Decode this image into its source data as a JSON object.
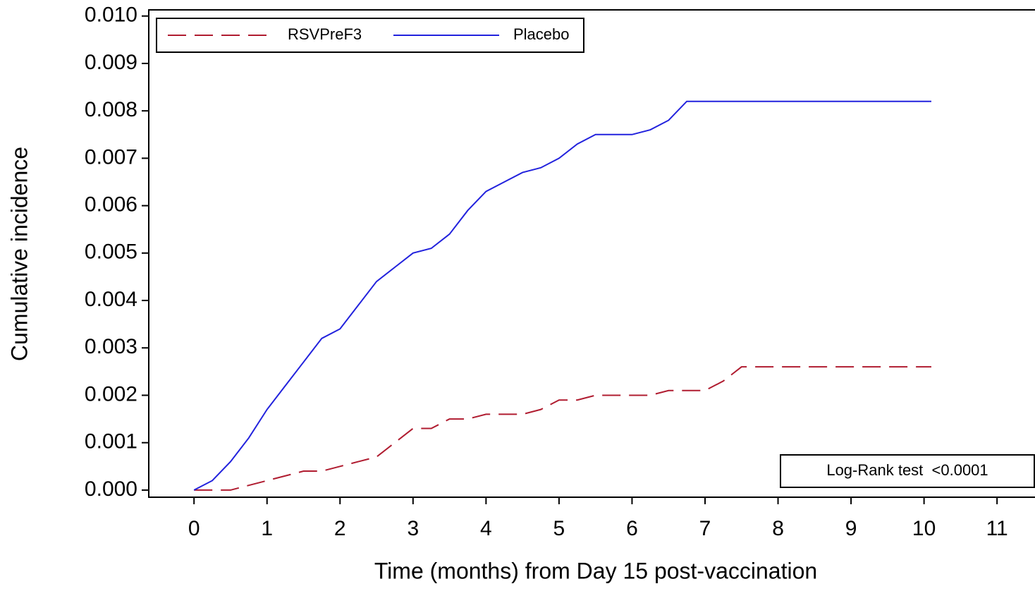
{
  "chart_data": {
    "type": "line",
    "x_label": "Time (months) from Day 15 post-vaccination",
    "y_label": "Cumulative incidence",
    "annotation": "Log-Rank test  <0.0001",
    "x": [
      0,
      0.25,
      0.5,
      0.75,
      1,
      1.25,
      1.5,
      1.75,
      2,
      2.25,
      2.5,
      2.75,
      3,
      3.25,
      3.5,
      3.75,
      4,
      4.25,
      4.5,
      4.75,
      5,
      5.25,
      5.5,
      5.75,
      6,
      6.25,
      6.5,
      6.75,
      7,
      7.25,
      7.5,
      7.75,
      8,
      8.25,
      8.5,
      8.75,
      9,
      9.25,
      9.5,
      9.75,
      10,
      10.1
    ],
    "series": [
      {
        "name": "RSVPreF3",
        "color": "#b01c30",
        "dashed": true,
        "values": [
          0,
          0,
          0,
          0.0001,
          0.0002,
          0.0003,
          0.0004,
          0.0004,
          0.0005,
          0.0006,
          0.0007,
          0.001,
          0.0013,
          0.0013,
          0.0015,
          0.0015,
          0.0016,
          0.0016,
          0.0016,
          0.0017,
          0.0019,
          0.0019,
          0.002,
          0.002,
          0.002,
          0.002,
          0.0021,
          0.0021,
          0.0021,
          0.0023,
          0.0026,
          0.0026,
          0.0026,
          0.0026,
          0.0026,
          0.0026,
          0.0026,
          0.0026,
          0.0026,
          0.0026,
          0.0026,
          0.0026
        ]
      },
      {
        "name": "Placebo",
        "color": "#2222dd",
        "dashed": false,
        "values": [
          0,
          0.0002,
          0.0006,
          0.0011,
          0.0017,
          0.0022,
          0.0027,
          0.0032,
          0.0034,
          0.0039,
          0.0044,
          0.0047,
          0.005,
          0.0051,
          0.0054,
          0.0059,
          0.0063,
          0.0065,
          0.0067,
          0.0068,
          0.007,
          0.0073,
          0.0075,
          0.0075,
          0.0075,
          0.0076,
          0.0078,
          0.0082,
          0.0082,
          0.0082,
          0.0082,
          0.0082,
          0.0082,
          0.0082,
          0.0082,
          0.0082,
          0.0082,
          0.0082,
          0.0082,
          0.0082,
          0.0082,
          0.0082
        ]
      }
    ],
    "xlim": [
      -0.62,
      11.52
    ],
    "ylim": [
      -0.00015,
      0.01013
    ],
    "xticks": [
      0,
      1,
      2,
      3,
      4,
      5,
      6,
      7,
      8,
      9,
      10,
      11
    ],
    "yticks": [
      {
        "value": 0,
        "label": "0.000"
      },
      {
        "value": 0.001,
        "label": "0.001"
      },
      {
        "value": 0.002,
        "label": "0.002"
      },
      {
        "value": 0.003,
        "label": "0.003"
      },
      {
        "value": 0.004,
        "label": "0.004"
      },
      {
        "value": 0.005,
        "label": "0.005"
      },
      {
        "value": 0.006,
        "label": "0.006"
      },
      {
        "value": 0.007,
        "label": "0.007"
      },
      {
        "value": 0.008,
        "label": "0.008"
      },
      {
        "value": 0.009,
        "label": "0.009"
      },
      {
        "value": 0.01,
        "label": "0.010"
      }
    ],
    "legend": "top-left"
  }
}
